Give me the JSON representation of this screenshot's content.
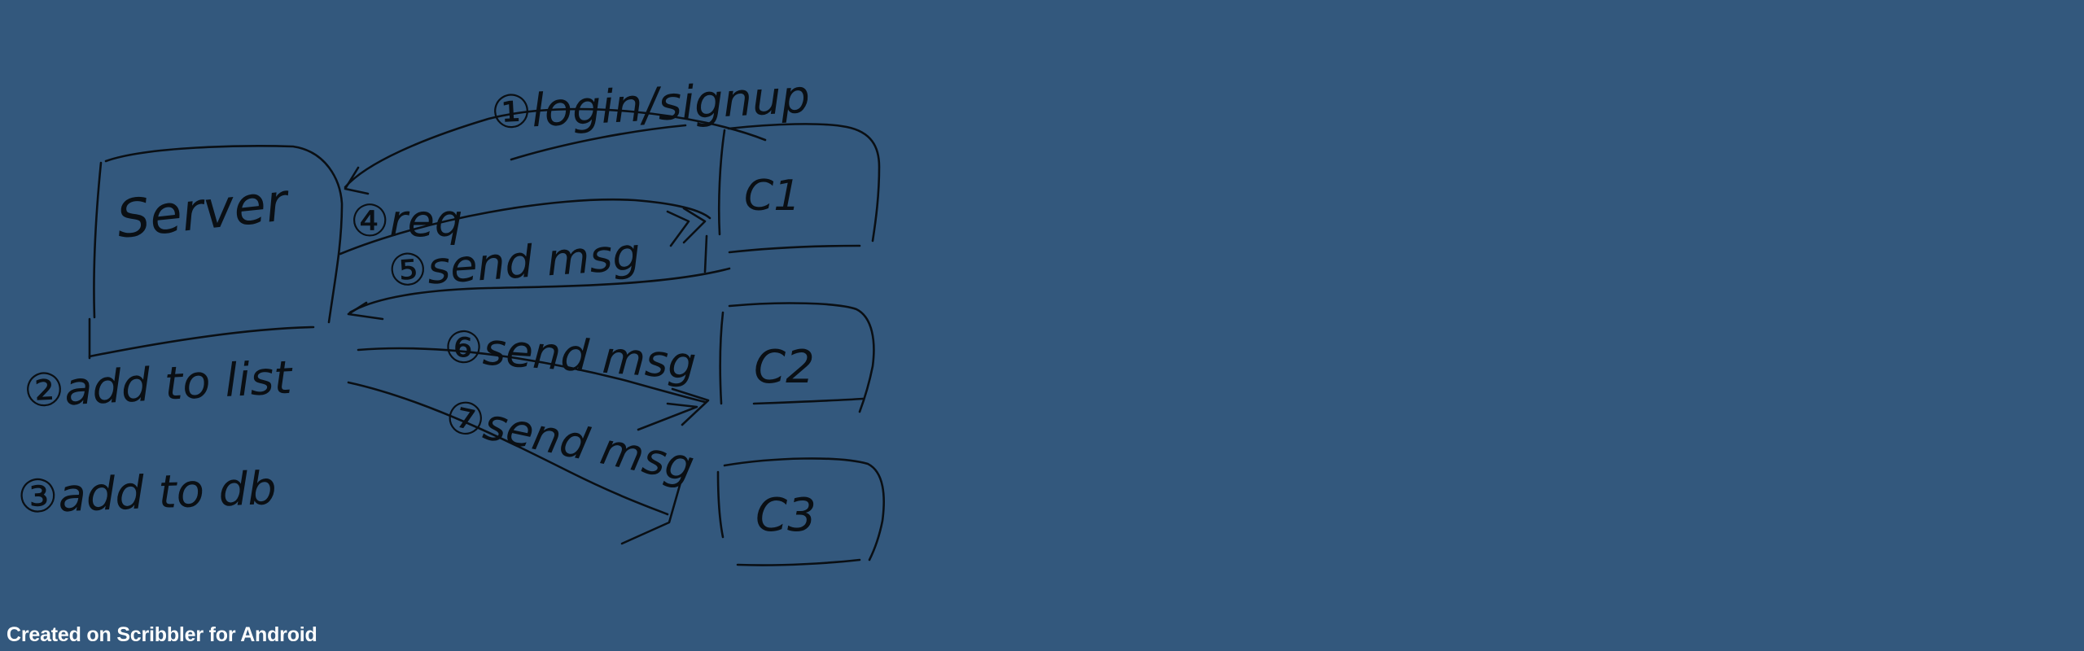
{
  "canvas": {
    "background": "#33587d",
    "ink": "#0a0f14"
  },
  "nodes": {
    "server": "Server",
    "c1": "C1",
    "c2": "C2",
    "c3": "C3"
  },
  "labels": {
    "login": "①login/signup",
    "req": "④req",
    "send_msg_back": "⑤send msg",
    "send_msg_c2": "⑥send msg",
    "send_msg_c3": "⑦send msg",
    "add_to_list": "②add to list",
    "add_to_db": "③add to db"
  },
  "footer": "Created on Scribbler for Android"
}
